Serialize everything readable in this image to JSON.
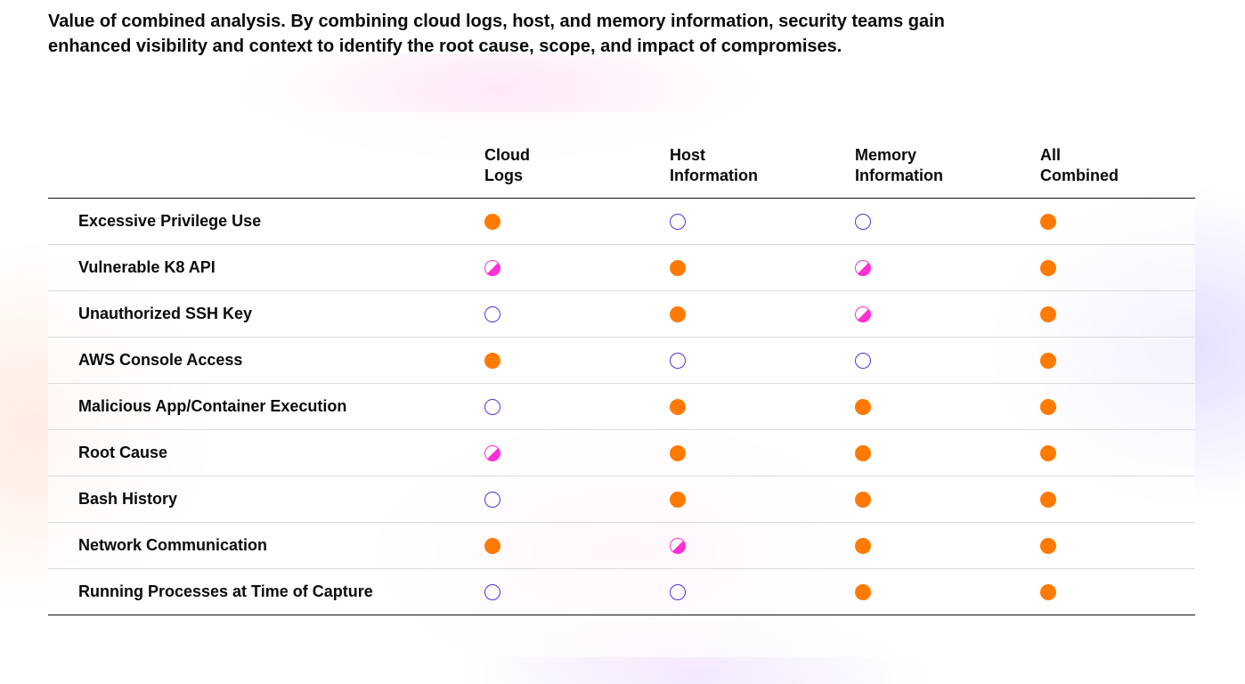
{
  "caption": "Value of combined analysis. By combining cloud logs, host, and memory information, security teams gain enhanced visibility and context to identify the root cause, scope, and impact of compromises.",
  "colors": {
    "full": "#ff7a00",
    "empty": "#5a2fe0",
    "partial": "#ff2fd6"
  },
  "table": {
    "columns": [
      {
        "line1": "Cloud",
        "line2": "Logs"
      },
      {
        "line1": "Host",
        "line2": "Information"
      },
      {
        "line1": "Memory",
        "line2": "Information"
      },
      {
        "line1": "All",
        "line2": "Combined"
      }
    ],
    "rows": [
      {
        "label": "Excessive Privilege Use",
        "values": [
          "full",
          "empty",
          "empty",
          "full"
        ]
      },
      {
        "label": "Vulnerable K8 API",
        "values": [
          "partial",
          "full",
          "partial",
          "full"
        ]
      },
      {
        "label": "Unauthorized SSH Key",
        "values": [
          "empty",
          "full",
          "partial",
          "full"
        ]
      },
      {
        "label": "AWS Console Access",
        "values": [
          "full",
          "empty",
          "empty",
          "full"
        ]
      },
      {
        "label": "Malicious App/Container Execution",
        "values": [
          "empty",
          "full",
          "full",
          "full"
        ]
      },
      {
        "label": "Root Cause",
        "values": [
          "partial",
          "full",
          "full",
          "full"
        ]
      },
      {
        "label": "Bash History",
        "values": [
          "empty",
          "full",
          "full",
          "full"
        ]
      },
      {
        "label": "Network Communication",
        "values": [
          "full",
          "partial",
          "full",
          "full"
        ]
      },
      {
        "label": "Running Processes at Time of Capture",
        "values": [
          "empty",
          "empty",
          "full",
          "full"
        ]
      }
    ]
  }
}
